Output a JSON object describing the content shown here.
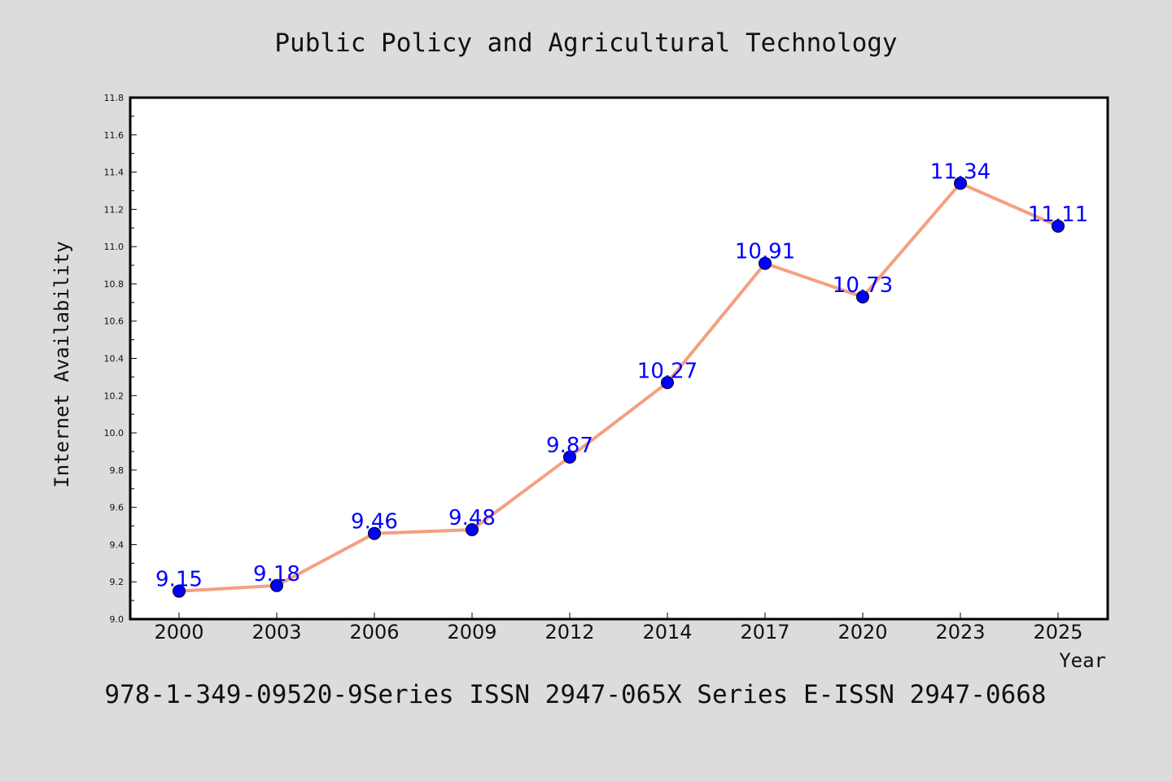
{
  "chart_data": {
    "type": "line",
    "title": "Public Policy and Agricultural Technology",
    "xlabel": "Year",
    "ylabel": "Internet Availability",
    "categories": [
      "2000",
      "2003",
      "2006",
      "2009",
      "2012",
      "2014",
      "2017",
      "2020",
      "2023",
      "2025"
    ],
    "series": [
      {
        "values": [
          9.15,
          9.18,
          9.46,
          9.48,
          9.87,
          10.27,
          10.91,
          10.73,
          11.34,
          11.11
        ],
        "labels": [
          "9.15",
          "9.18",
          "9.46",
          "9.48",
          "9.87",
          "10.27",
          "10.91",
          "10.73",
          "11.34",
          "11.11"
        ]
      }
    ],
    "ylim": [
      9.0,
      11.8
    ],
    "yticks": [
      "9.0",
      "9.2",
      "9.4",
      "9.6",
      "9.8",
      "10.0",
      "10.2",
      "10.4",
      "10.6",
      "10.8",
      "11.0",
      "11.2",
      "11.4",
      "11.6",
      "11.8"
    ],
    "grid": false,
    "colors": {
      "line": "#f4a080",
      "marker": "#0000ff",
      "data_label": "#0000ff",
      "background": "#dcdcdc",
      "plot_background": "#ffffff"
    }
  },
  "footer": "978-1-349-09520-9Series ISSN 2947-065X Series E-ISSN 2947-0668"
}
